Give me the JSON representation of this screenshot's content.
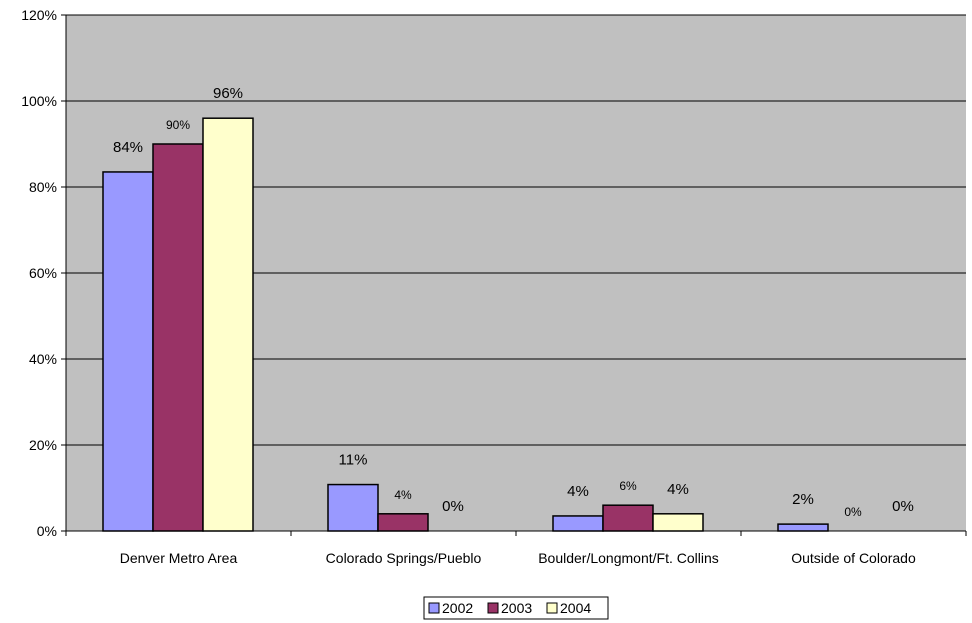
{
  "chart_data": {
    "type": "bar",
    "title": "",
    "xlabel": "",
    "ylabel": "",
    "ylim": [
      0,
      120
    ],
    "y_ticks": [
      "0%",
      "20%",
      "40%",
      "60%",
      "80%",
      "100%",
      "120%"
    ],
    "grid": true,
    "legend_position": "bottom",
    "categories": [
      "Denver Metro Area",
      "Colorado Springs/Pueblo",
      "Boulder/Longmont/Ft. Collins",
      "Outside of Colorado"
    ],
    "series": [
      {
        "name": "2002",
        "color": "#9999ff",
        "values": [
          83.5,
          10.8,
          3.5,
          1.6
        ],
        "labels": [
          "84%",
          "11%",
          "4%",
          "2%"
        ]
      },
      {
        "name": "2003",
        "color": "#993366",
        "values": [
          90,
          4,
          6,
          0
        ],
        "labels": [
          "90%",
          "4%",
          "6%",
          "0%"
        ]
      },
      {
        "name": "2004",
        "color": "#ffffcc",
        "values": [
          96,
          0,
          4,
          0
        ],
        "labels": [
          "96%",
          "0%",
          "4%",
          "0%"
        ]
      }
    ],
    "plot_background": "#c0c0c0"
  }
}
